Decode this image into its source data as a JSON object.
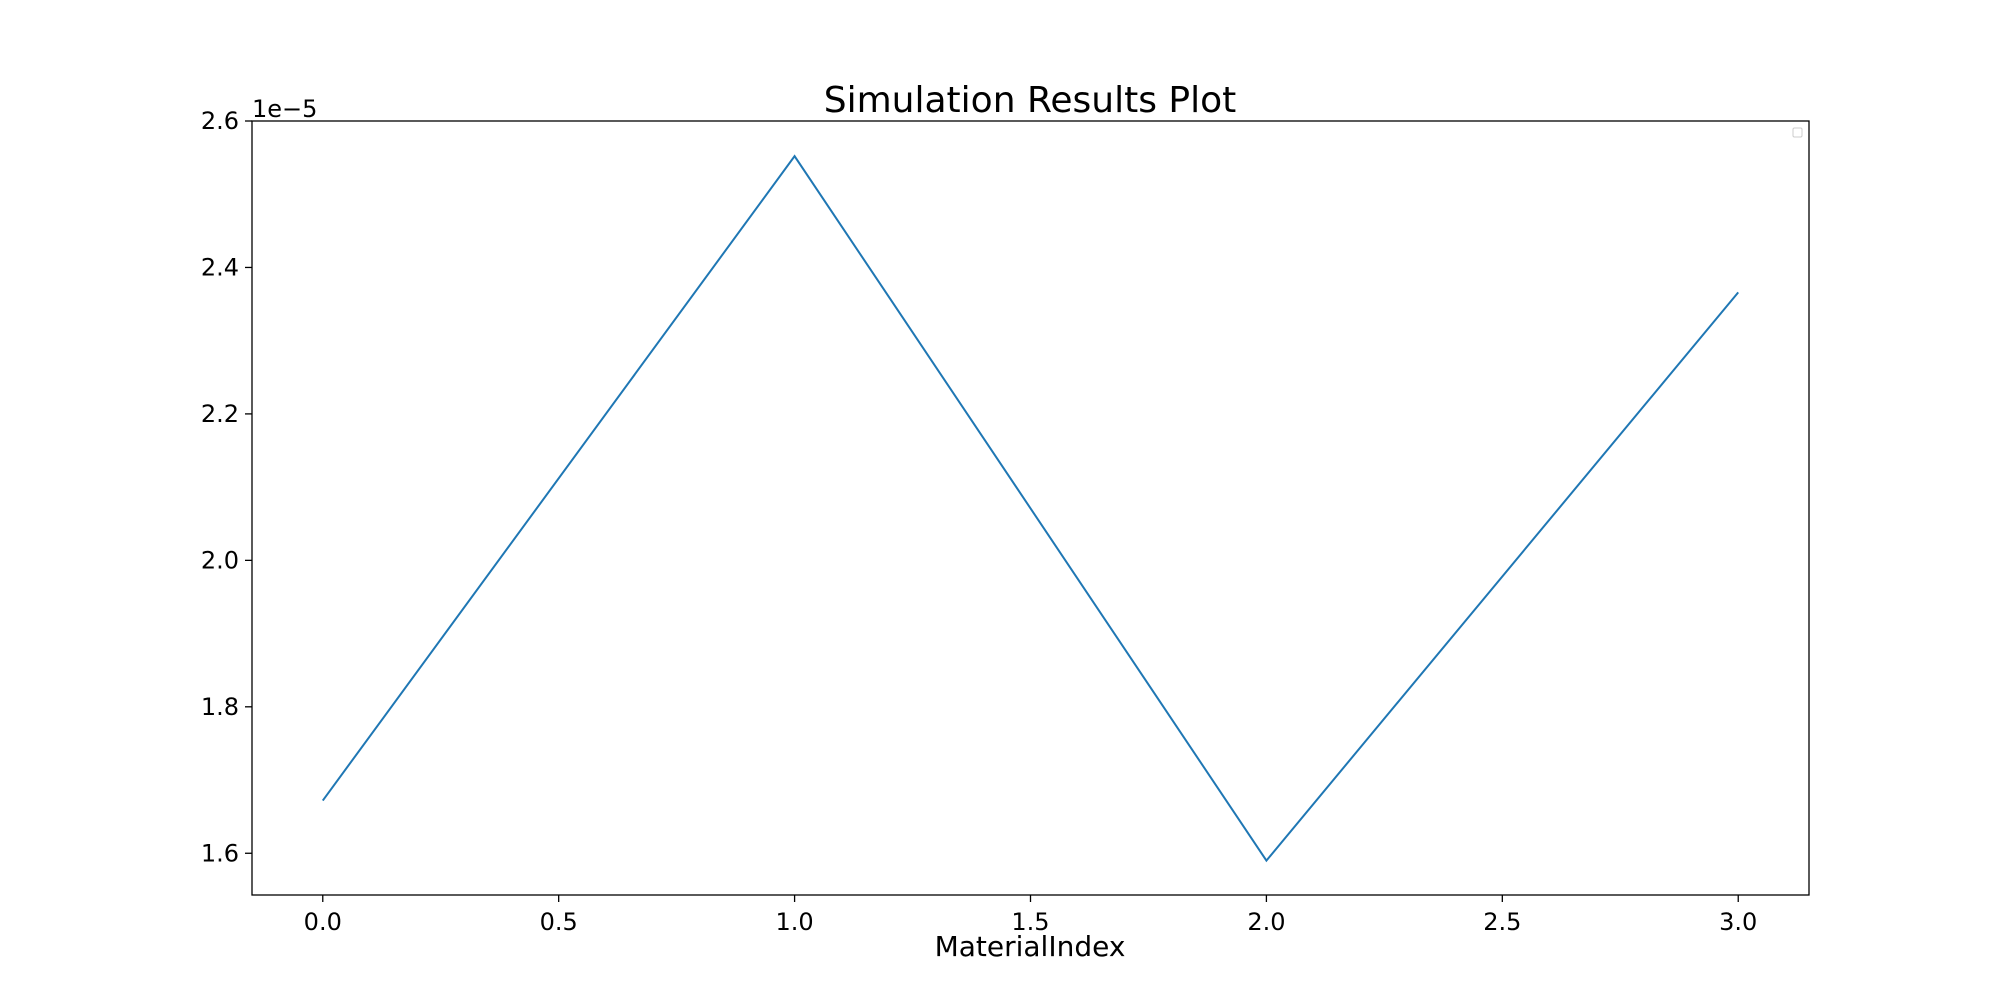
{
  "chart_data": {
    "type": "line",
    "title": "Simulation Results Plot",
    "xlabel": "MaterialIndex",
    "ylabel": "",
    "offset_label": "1e−5",
    "x": [
      0,
      1,
      2,
      3
    ],
    "series": [
      {
        "values": [
          1.672e-05,
          2.552e-05,
          1.59e-05,
          2.366e-05
        ],
        "color": "#1f77b4"
      }
    ],
    "xlim": [
      -0.15,
      3.15
    ],
    "ylim": [
      1.543e-05,
      2.6e-05
    ],
    "xticks": [
      0.0,
      0.5,
      1.0,
      1.5,
      2.0,
      2.5,
      3.0
    ],
    "xtick_labels": [
      "0.0",
      "0.5",
      "1.0",
      "1.5",
      "2.0",
      "2.5",
      "3.0"
    ],
    "yticks": [
      1.6e-05,
      1.8e-05,
      2e-05,
      2.2e-05,
      2.4e-05,
      2.6e-05
    ],
    "ytick_labels": [
      "1.6",
      "1.8",
      "2.0",
      "2.2",
      "2.4",
      "2.6"
    ],
    "grid": false,
    "legend": {
      "placement": "top-right",
      "entries": []
    }
  }
}
